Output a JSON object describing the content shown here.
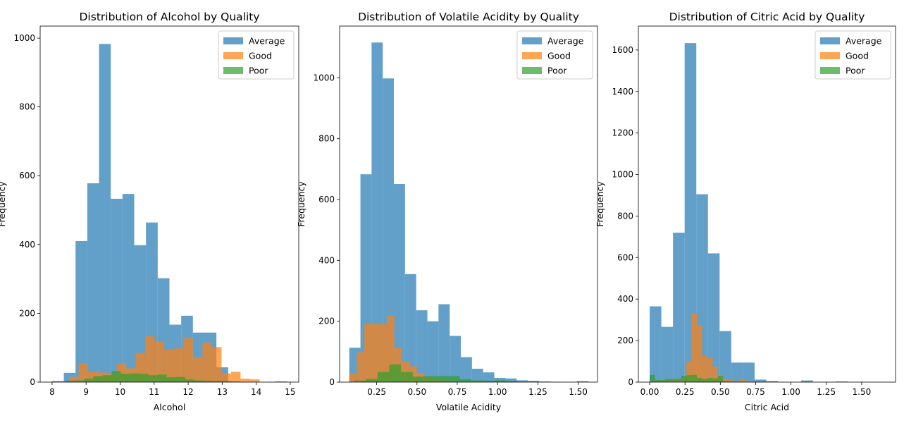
{
  "chart_data": [
    {
      "type": "histogram",
      "title": "Distribution of Alcohol by Quality",
      "xlabel": "Alcohol",
      "ylabel": "Frequency",
      "xlim": [
        7.65,
        15.25
      ],
      "ylim": [
        0,
        1035
      ],
      "xticks": [
        8,
        9,
        10,
        11,
        12,
        13,
        14,
        15
      ],
      "yticks": [
        0,
        200,
        400,
        600,
        800,
        1000
      ],
      "xtick_labels": [
        "8",
        "9",
        "10",
        "11",
        "12",
        "13",
        "14",
        "15"
      ],
      "ytick_labels": [
        "0",
        "200",
        "400",
        "600",
        "800",
        "1000"
      ],
      "legend_position": "top-right",
      "series": [
        {
          "name": "Average",
          "color": "#1f77b4",
          "alpha": 0.7,
          "bin_start": 8.0,
          "bin_width": 0.345,
          "values": [
            3,
            27,
            410,
            578,
            983,
            533,
            547,
            398,
            464,
            302,
            167,
            193,
            144,
            144,
            43,
            0,
            0,
            0,
            0,
            2
          ]
        },
        {
          "name": "Good",
          "color": "#ff7f0e",
          "alpha": 0.7,
          "bin_start": 8.5,
          "bin_width": 0.28,
          "values": [
            15,
            55,
            30,
            28,
            25,
            55,
            40,
            85,
            133,
            118,
            95,
            98,
            128,
            72,
            115,
            102,
            25,
            30,
            10,
            8
          ]
        },
        {
          "name": "Poor",
          "color": "#2ca02c",
          "alpha": 0.7,
          "bin_start": 8.4,
          "bin_width": 0.27,
          "values": [
            4,
            5,
            10,
            17,
            20,
            32,
            24,
            25,
            24,
            20,
            22,
            14,
            15,
            8,
            5,
            4,
            3,
            3,
            2,
            0
          ]
        }
      ]
    },
    {
      "type": "histogram",
      "title": "Distribution of Volatile Acidity by Quality",
      "xlabel": "Volatile Acidity",
      "ylabel": "Frequency",
      "xlim": [
        0.02,
        1.62
      ],
      "ylim": [
        0,
        1170
      ],
      "xticks": [
        0.25,
        0.5,
        0.75,
        1.0,
        1.25,
        1.5
      ],
      "yticks": [
        0,
        200,
        400,
        600,
        800,
        1000
      ],
      "xtick_labels": [
        "0.25",
        "0.50",
        "0.75",
        "1.00",
        "1.25",
        "1.50"
      ],
      "ytick_labels": [
        "0",
        "200",
        "400",
        "600",
        "800",
        "1000"
      ],
      "legend_position": "top-right",
      "series": [
        {
          "name": "Average",
          "color": "#1f77b4",
          "alpha": 0.7,
          "bin_start": 0.08,
          "bin_width": 0.0692,
          "values": [
            113,
            683,
            1116,
            998,
            651,
            355,
            236,
            200,
            256,
            152,
            82,
            44,
            32,
            14,
            12,
            6,
            4,
            2,
            1,
            0,
            0,
            0
          ]
        },
        {
          "name": "Good",
          "color": "#ff7f0e",
          "alpha": 0.7,
          "bin_start": 0.08,
          "bin_width": 0.0466,
          "values": [
            30,
            98,
            192,
            192,
            190,
            218,
            113,
            68,
            52,
            30,
            18,
            12,
            8,
            5,
            3,
            2,
            1,
            0,
            0,
            0
          ]
        },
        {
          "name": "Poor",
          "color": "#2ca02c",
          "alpha": 0.7,
          "bin_start": 0.11,
          "bin_width": 0.0727,
          "values": [
            5,
            10,
            33,
            58,
            33,
            18,
            20,
            20,
            20,
            10,
            6,
            5,
            6,
            4,
            2,
            2,
            1,
            0,
            0,
            3
          ]
        }
      ]
    },
    {
      "type": "histogram",
      "title": "Distribution of Citric Acid by Quality",
      "xlabel": "Citric Acid",
      "ylabel": "Frequency",
      "xlim": [
        -0.08,
        1.74
      ],
      "ylim": [
        0,
        1715
      ],
      "xticks": [
        0.0,
        0.25,
        0.5,
        0.75,
        1.0,
        1.25,
        1.5
      ],
      "yticks": [
        0,
        200,
        400,
        600,
        800,
        1000,
        1200,
        1400,
        1600
      ],
      "xtick_labels": [
        "0.00",
        "0.25",
        "0.50",
        "0.75",
        "1.00",
        "1.25",
        "1.50"
      ],
      "ytick_labels": [
        "0",
        "200",
        "400",
        "600",
        "800",
        "1000",
        "1200",
        "1400",
        "1600"
      ],
      "legend_position": "top-right",
      "series": [
        {
          "name": "Average",
          "color": "#1f77b4",
          "alpha": 0.7,
          "bin_start": 0.0,
          "bin_width": 0.0825,
          "values": [
            365,
            266,
            720,
            1633,
            905,
            620,
            246,
            94,
            94,
            12,
            5,
            0,
            0,
            8,
            0,
            0,
            3,
            0,
            0,
            0
          ]
        },
        {
          "name": "Good",
          "color": "#ff7f0e",
          "alpha": 0.7,
          "bin_start": 0.0,
          "bin_width": 0.0371,
          "values": [
            8,
            5,
            8,
            12,
            10,
            15,
            20,
            98,
            330,
            275,
            125,
            120,
            75,
            30,
            15,
            10,
            5,
            12,
            8,
            5
          ]
        },
        {
          "name": "Poor",
          "color": "#2ca02c",
          "alpha": 0.7,
          "bin_start": 0.0,
          "bin_width": 0.0371,
          "values": [
            35,
            10,
            10,
            15,
            15,
            15,
            30,
            33,
            35,
            20,
            15,
            20,
            18,
            30,
            5,
            3,
            2,
            1,
            0,
            0
          ]
        }
      ]
    }
  ]
}
